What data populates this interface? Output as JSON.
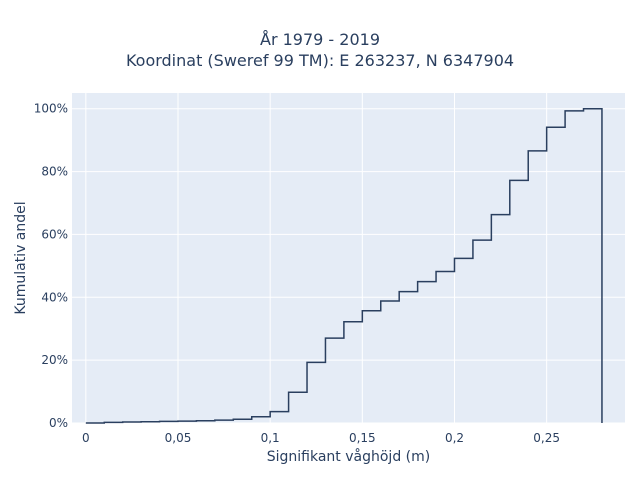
{
  "chart_data": {
    "type": "line",
    "step": true,
    "title_lines": [
      "År 1979 - 2019",
      "Koordinat (Sweref 99 TM): E 263237, N 6347904"
    ],
    "xlabel": "Signifikant våghöjd (m)",
    "ylabel": "Kumulativ andel",
    "xlim": [
      -0.0075,
      0.2925
    ],
    "ylim": [
      0,
      1.05
    ],
    "x_ticks": [
      0,
      0.05,
      0.1,
      0.15,
      0.2,
      0.25
    ],
    "x_tick_labels": [
      "0",
      "0,05",
      "0,1",
      "0,15",
      "0,2",
      "0,25"
    ],
    "y_ticks": [
      0,
      0.2,
      0.4,
      0.6,
      0.8,
      1.0
    ],
    "y_tick_labels": [
      "0%",
      "20%",
      "40%",
      "60%",
      "80%",
      "100%"
    ],
    "grid": true,
    "colors": {
      "plot_bg": "#e5ecf6",
      "grid": "#ffffff",
      "line": "#2a3f5f",
      "text": "#2a3f5f"
    },
    "series": [
      {
        "x": [
          0,
          0.01,
          0.02,
          0.03,
          0.04,
          0.05,
          0.06,
          0.07,
          0.08,
          0.09,
          0.1,
          0.11,
          0.12,
          0.13,
          0.14,
          0.15,
          0.16,
          0.17,
          0.18,
          0.19,
          0.2,
          0.21,
          0.22,
          0.23,
          0.24,
          0.25,
          0.26,
          0.27,
          0.28
        ],
        "y": [
          0.0,
          0.002,
          0.003,
          0.004,
          0.005,
          0.006,
          0.007,
          0.009,
          0.012,
          0.02,
          0.036,
          0.098,
          0.193,
          0.27,
          0.322,
          0.357,
          0.388,
          0.418,
          0.45,
          0.482,
          0.524,
          0.582,
          0.663,
          0.772,
          0.866,
          0.941,
          0.993,
          1.0,
          0.0
        ]
      }
    ]
  }
}
